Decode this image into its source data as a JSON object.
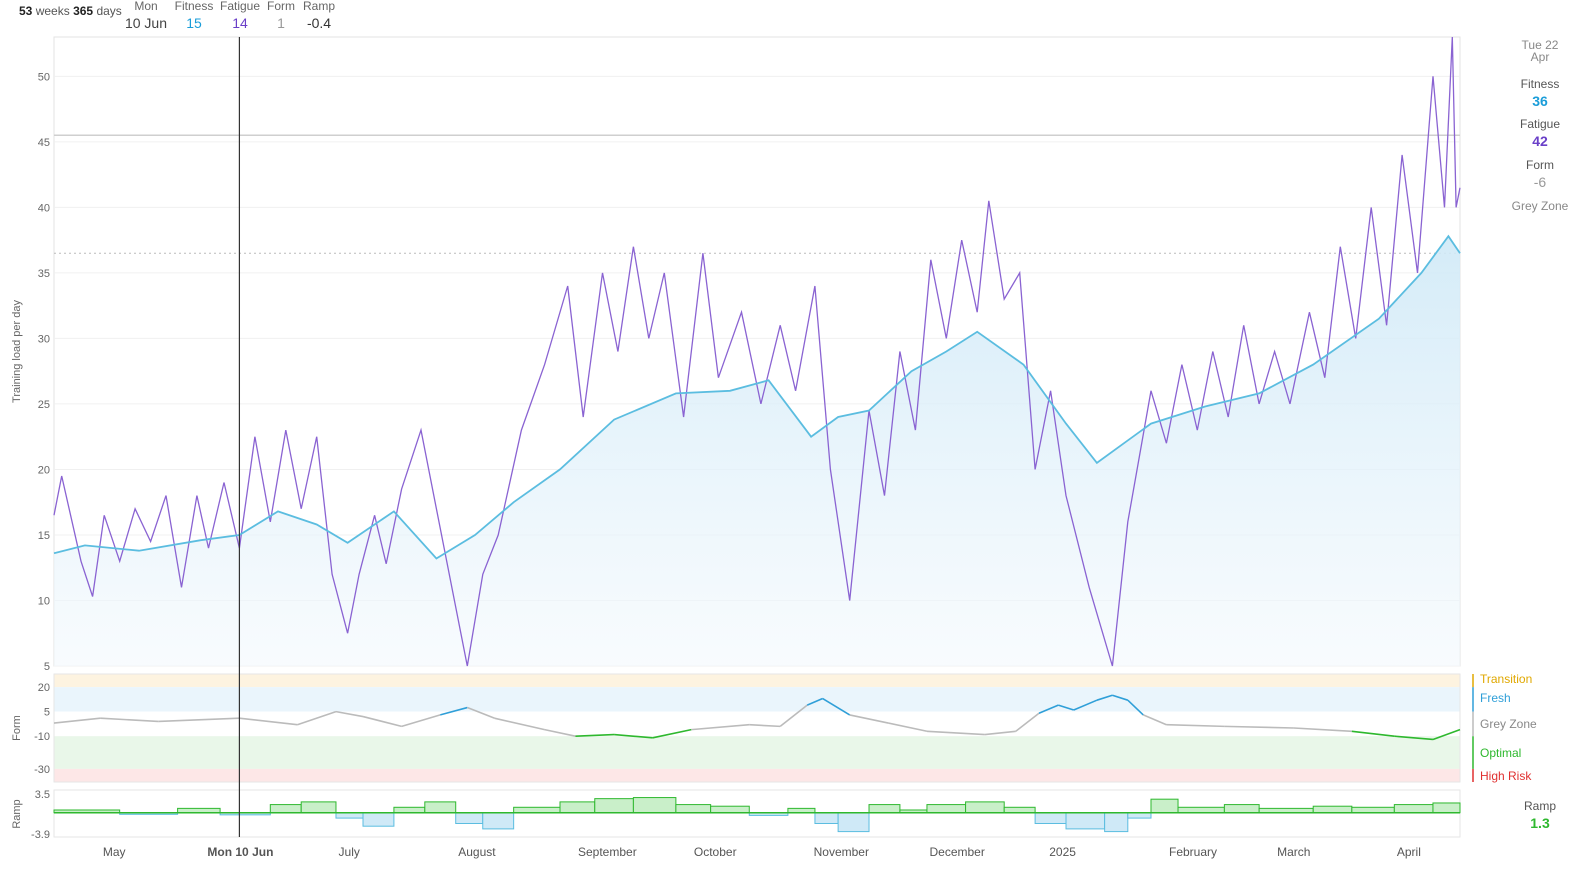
{
  "header": {
    "weeks_value": "53",
    "weeks_label": "weeks",
    "days_value": "365",
    "days_label": "days",
    "stats": [
      {
        "label": "Mon",
        "value": "10 Jun",
        "color": "#444444"
      },
      {
        "label": "Fitness",
        "value": "15",
        "color": "#1a9dd9"
      },
      {
        "label": "Fatigue",
        "value": "14",
        "color": "#6a3fc8"
      },
      {
        "label": "Form",
        "value": "1",
        "color": "#999999"
      },
      {
        "label": "Ramp",
        "value": "-0.4",
        "color": "#333333"
      }
    ]
  },
  "cursor_label": "Mon 10 Jun",
  "side_panel": {
    "date_line1": "Tue 22",
    "date_line2": "Apr",
    "fitness_label": "Fitness",
    "fitness_value": "36",
    "fitness_color": "#1a9dd9",
    "fatigue_label": "Fatigue",
    "fatigue_value": "42",
    "fatigue_color": "#6a3fc8",
    "form_label": "Form",
    "form_value": "-6",
    "form_color": "#999999",
    "form_zone": "Grey Zone",
    "ramp_label": "Ramp",
    "ramp_value": "1.3",
    "ramp_color": "#2eb82e"
  },
  "form_zones": [
    {
      "label": "Transition",
      "color": "#e0a800"
    },
    {
      "label": "Fresh",
      "color": "#2f9fd8"
    },
    {
      "label": "Grey Zone",
      "color": "#888888"
    },
    {
      "label": "Optimal",
      "color": "#2eb82e"
    },
    {
      "label": "High Risk",
      "color": "#e03030"
    }
  ],
  "colors": {
    "fitness": "#5bbde0",
    "fitness_fill": "#e4f3fb",
    "fatigue": "#8a63d2",
    "form_grey": "#bbbbbb",
    "form_fresh": "#2f9fd8",
    "form_optimal": "#2eb82e",
    "ramp_pos": "#2eb82e",
    "ramp_neg": "#5bbde0"
  },
  "chart_data": [
    {
      "type": "line",
      "title": "",
      "ylabel": "Training load per day",
      "ylim": [
        5,
        53
      ],
      "yticks": [
        5,
        10,
        15,
        20,
        25,
        30,
        35,
        40,
        45,
        50
      ],
      "x_domain": [
        "2024-04-23",
        "2025-04-22"
      ],
      "months": [
        {
          "label": "May",
          "date": "2024-05-01"
        },
        {
          "label": "Ju",
          "date": "2024-06-01"
        },
        {
          "label": "July",
          "date": "2024-07-01"
        },
        {
          "label": "August",
          "date": "2024-08-01"
        },
        {
          "label": "September",
          "date": "2024-09-01"
        },
        {
          "label": "October",
          "date": "2024-10-01"
        },
        {
          "label": "November",
          "date": "2024-11-01"
        },
        {
          "label": "December",
          "date": "2024-12-01"
        },
        {
          "label": "2025",
          "date": "2025-01-01"
        },
        {
          "label": "February",
          "date": "2025-02-01"
        },
        {
          "label": "March",
          "date": "2025-03-01"
        },
        {
          "label": "April",
          "date": "2025-04-01"
        }
      ],
      "reference_lines": [
        45.5,
        36.5
      ],
      "cursor_date": "2024-06-10",
      "series": [
        {
          "name": "Fitness",
          "points": [
            [
              "2024-04-23",
              13.6
            ],
            [
              "2024-05-01",
              14.2
            ],
            [
              "2024-05-15",
              13.8
            ],
            [
              "2024-05-31",
              14.6
            ],
            [
              "2024-06-10",
              15
            ],
            [
              "2024-06-20",
              16.8
            ],
            [
              "2024-06-30",
              15.8
            ],
            [
              "2024-07-08",
              14.4
            ],
            [
              "2024-07-20",
              16.8
            ],
            [
              "2024-07-31",
              13.2
            ],
            [
              "2024-08-10",
              15.0
            ],
            [
              "2024-08-20",
              17.5
            ],
            [
              "2024-09-01",
              20.0
            ],
            [
              "2024-09-15",
              23.8
            ],
            [
              "2024-10-01",
              25.8
            ],
            [
              "2024-10-15",
              26.0
            ],
            [
              "2024-10-25",
              26.8
            ],
            [
              "2024-11-05",
              22.5
            ],
            [
              "2024-11-12",
              24.0
            ],
            [
              "2024-11-20",
              24.5
            ],
            [
              "2024-12-01",
              27.5
            ],
            [
              "2024-12-10",
              29.0
            ],
            [
              "2024-12-18",
              30.5
            ],
            [
              "2024-12-30",
              28.0
            ],
            [
              "2025-01-10",
              23.5
            ],
            [
              "2025-01-18",
              20.5
            ],
            [
              "2025-01-25",
              22.0
            ],
            [
              "2025-02-01",
              23.5
            ],
            [
              "2025-02-15",
              24.8
            ],
            [
              "2025-03-01",
              25.8
            ],
            [
              "2025-03-15",
              28.0
            ],
            [
              "2025-04-01",
              31.5
            ],
            [
              "2025-04-12",
              35.0
            ],
            [
              "2025-04-19",
              37.8
            ],
            [
              "2025-04-22",
              36.5
            ]
          ]
        },
        {
          "name": "Fatigue",
          "points": [
            [
              "2024-04-23",
              16.5
            ],
            [
              "2024-04-25",
              19.5
            ],
            [
              "2024-04-30",
              13
            ],
            [
              "2024-05-03",
              10.3
            ],
            [
              "2024-05-06",
              16.5
            ],
            [
              "2024-05-10",
              13
            ],
            [
              "2024-05-14",
              17
            ],
            [
              "2024-05-18",
              14.5
            ],
            [
              "2024-05-22",
              18
            ],
            [
              "2024-05-26",
              11
            ],
            [
              "2024-05-30",
              18
            ],
            [
              "2024-06-02",
              14
            ],
            [
              "2024-06-06",
              19
            ],
            [
              "2024-06-10",
              14
            ],
            [
              "2024-06-14",
              22.5
            ],
            [
              "2024-06-18",
              16
            ],
            [
              "2024-06-22",
              23
            ],
            [
              "2024-06-26",
              17
            ],
            [
              "2024-06-30",
              22.5
            ],
            [
              "2024-07-04",
              12
            ],
            [
              "2024-07-08",
              7.5
            ],
            [
              "2024-07-11",
              12
            ],
            [
              "2024-07-15",
              16.5
            ],
            [
              "2024-07-18",
              12.8
            ],
            [
              "2024-07-22",
              18.5
            ],
            [
              "2024-07-27",
              23
            ],
            [
              "2024-07-31",
              17
            ],
            [
              "2024-08-08",
              5
            ],
            [
              "2024-08-12",
              12
            ],
            [
              "2024-08-16",
              15
            ],
            [
              "2024-08-22",
              23
            ],
            [
              "2024-08-28",
              28
            ],
            [
              "2024-09-03",
              34
            ],
            [
              "2024-09-07",
              24
            ],
            [
              "2024-09-12",
              35
            ],
            [
              "2024-09-16",
              29
            ],
            [
              "2024-09-20",
              37
            ],
            [
              "2024-09-24",
              30
            ],
            [
              "2024-09-28",
              35
            ],
            [
              "2024-10-03",
              24
            ],
            [
              "2024-10-08",
              36.5
            ],
            [
              "2024-10-12",
              27
            ],
            [
              "2024-10-18",
              32
            ],
            [
              "2024-10-23",
              25
            ],
            [
              "2024-10-28",
              31
            ],
            [
              "2024-11-01",
              26
            ],
            [
              "2024-11-06",
              34
            ],
            [
              "2024-11-10",
              20
            ],
            [
              "2024-11-15",
              10
            ],
            [
              "2024-11-20",
              24.5
            ],
            [
              "2024-11-24",
              18
            ],
            [
              "2024-11-28",
              29
            ],
            [
              "2024-12-02",
              23
            ],
            [
              "2024-12-06",
              36
            ],
            [
              "2024-12-10",
              30
            ],
            [
              "2024-12-14",
              37.5
            ],
            [
              "2024-12-18",
              32
            ],
            [
              "2024-12-21",
              40.5
            ],
            [
              "2024-12-25",
              33
            ],
            [
              "2024-12-29",
              35
            ],
            [
              "2025-01-02",
              20
            ],
            [
              "2025-01-06",
              26
            ],
            [
              "2025-01-10",
              18
            ],
            [
              "2025-01-16",
              11
            ],
            [
              "2025-01-22",
              5
            ],
            [
              "2025-01-26",
              16
            ],
            [
              "2025-02-01",
              26
            ],
            [
              "2025-02-05",
              22
            ],
            [
              "2025-02-09",
              28
            ],
            [
              "2025-02-13",
              23
            ],
            [
              "2025-02-17",
              29
            ],
            [
              "2025-02-21",
              24
            ],
            [
              "2025-02-25",
              31
            ],
            [
              "2025-03-01",
              25
            ],
            [
              "2025-03-05",
              29
            ],
            [
              "2025-03-09",
              25
            ],
            [
              "2025-03-14",
              32
            ],
            [
              "2025-03-18",
              27
            ],
            [
              "2025-03-22",
              37
            ],
            [
              "2025-03-26",
              30
            ],
            [
              "2025-03-30",
              40
            ],
            [
              "2025-04-03",
              31
            ],
            [
              "2025-04-07",
              44
            ],
            [
              "2025-04-11",
              35
            ],
            [
              "2025-04-15",
              50
            ],
            [
              "2025-04-18",
              40
            ],
            [
              "2025-04-20",
              53
            ],
            [
              "2025-04-21",
              40
            ],
            [
              "2025-04-22",
              41.5
            ]
          ]
        }
      ]
    },
    {
      "type": "line",
      "title": "",
      "ylabel": "Form",
      "ylim": [
        -38,
        28
      ],
      "yticks": [
        20,
        5,
        -10,
        -30
      ],
      "series": [
        {
          "name": "Form",
          "points": [
            [
              "2024-04-23",
              -2
            ],
            [
              "2024-05-05",
              1
            ],
            [
              "2024-05-20",
              -1
            ],
            [
              "2024-06-10",
              1
            ],
            [
              "2024-06-25",
              -3
            ],
            [
              "2024-07-05",
              5
            ],
            [
              "2024-07-12",
              2
            ],
            [
              "2024-07-22",
              -4
            ],
            [
              "2024-08-01",
              3
            ],
            [
              "2024-08-08",
              7.5
            ],
            [
              "2024-08-15",
              1
            ],
            [
              "2024-08-28",
              -6
            ],
            [
              "2024-09-05",
              -10
            ],
            [
              "2024-09-15",
              -9
            ],
            [
              "2024-09-25",
              -11
            ],
            [
              "2024-10-05",
              -6
            ],
            [
              "2024-10-20",
              -3
            ],
            [
              "2024-10-28",
              -4
            ],
            [
              "2024-11-04",
              9
            ],
            [
              "2024-11-08",
              13
            ],
            [
              "2024-11-15",
              3
            ],
            [
              "2024-11-25",
              -2
            ],
            [
              "2024-12-05",
              -7
            ],
            [
              "2024-12-20",
              -9
            ],
            [
              "2024-12-28",
              -7
            ],
            [
              "2025-01-03",
              4
            ],
            [
              "2025-01-08",
              9
            ],
            [
              "2025-01-12",
              6
            ],
            [
              "2025-01-18",
              12
            ],
            [
              "2025-01-22",
              15
            ],
            [
              "2025-01-26",
              12
            ],
            [
              "2025-01-30",
              3
            ],
            [
              "2025-02-05",
              -3
            ],
            [
              "2025-02-20",
              -4
            ],
            [
              "2025-03-10",
              -5
            ],
            [
              "2025-03-25",
              -7
            ],
            [
              "2025-04-05",
              -10
            ],
            [
              "2025-04-15",
              -12
            ],
            [
              "2025-04-22",
              -6
            ]
          ]
        }
      ]
    },
    {
      "type": "area",
      "title": "",
      "ylabel": "Ramp",
      "ylim": [
        -4.5,
        4.2
      ],
      "yticks": [
        3.5,
        -3.9
      ],
      "series": [
        {
          "name": "Ramp",
          "points": [
            [
              "2024-04-23",
              0.5
            ],
            [
              "2024-05-10",
              -0.3
            ],
            [
              "2024-05-25",
              0.8
            ],
            [
              "2024-06-05",
              -0.4
            ],
            [
              "2024-06-10",
              -0.4
            ],
            [
              "2024-06-18",
              1.5
            ],
            [
              "2024-06-26",
              2.0
            ],
            [
              "2024-07-05",
              -1.0
            ],
            [
              "2024-07-12",
              -2.5
            ],
            [
              "2024-07-20",
              1.0
            ],
            [
              "2024-07-28",
              2.0
            ],
            [
              "2024-08-05",
              -2.0
            ],
            [
              "2024-08-12",
              -3.0
            ],
            [
              "2024-08-20",
              1.0
            ],
            [
              "2024-09-01",
              2.0
            ],
            [
              "2024-09-10",
              2.6
            ],
            [
              "2024-09-20",
              2.8
            ],
            [
              "2024-10-01",
              1.5
            ],
            [
              "2024-10-10",
              1.2
            ],
            [
              "2024-10-20",
              -0.5
            ],
            [
              "2024-10-30",
              0.8
            ],
            [
              "2024-11-06",
              -2.0
            ],
            [
              "2024-11-12",
              -3.5
            ],
            [
              "2024-11-20",
              1.5
            ],
            [
              "2024-11-28",
              0.5
            ],
            [
              "2024-12-05",
              1.5
            ],
            [
              "2024-12-15",
              2.0
            ],
            [
              "2024-12-25",
              1.0
            ],
            [
              "2025-01-02",
              -2.0
            ],
            [
              "2025-01-10",
              -3.0
            ],
            [
              "2025-01-20",
              -3.5
            ],
            [
              "2025-01-26",
              -1.0
            ],
            [
              "2025-02-01",
              2.5
            ],
            [
              "2025-02-08",
              1.0
            ],
            [
              "2025-02-20",
              1.5
            ],
            [
              "2025-03-01",
              0.8
            ],
            [
              "2025-03-15",
              1.2
            ],
            [
              "2025-03-25",
              1.0
            ],
            [
              "2025-04-05",
              1.5
            ],
            [
              "2025-04-15",
              1.8
            ],
            [
              "2025-04-22",
              1.3
            ]
          ]
        }
      ]
    }
  ]
}
